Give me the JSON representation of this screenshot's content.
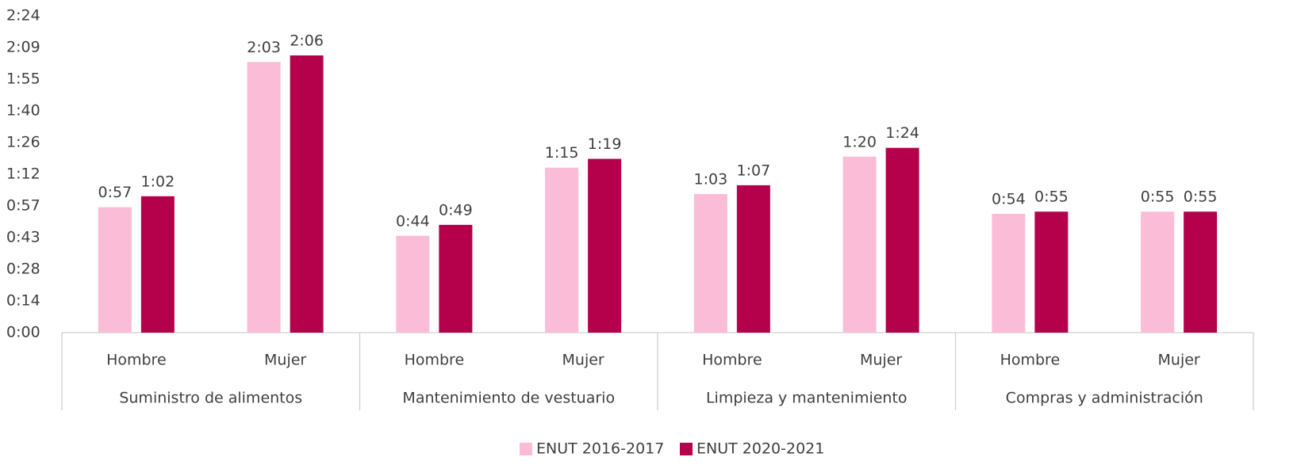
{
  "chart_data": {
    "type": "bar",
    "categories": [
      "Hombre",
      "Mujer",
      "Hombre",
      "Mujer",
      "Hombre",
      "Mujer",
      "Hombre",
      "Mujer"
    ],
    "groups": [
      "Suministro de alimentos",
      "Mantenimiento de vestuario",
      "Limpieza y mantenimiento",
      "Compras y administración"
    ],
    "series": [
      {
        "name": "ENUT 2016-2017",
        "color": "#fbbcd8",
        "values": [
          57,
          123,
          44,
          75,
          63,
          80,
          54,
          55
        ],
        "value_labels": [
          "0:57",
          "2:03",
          "0:44",
          "1:15",
          "1:03",
          "1:20",
          "0:54",
          "0:55"
        ]
      },
      {
        "name": "ENUT 2020-2021",
        "color": "#b5004b",
        "values": [
          62,
          126,
          49,
          79,
          67,
          84,
          55,
          55
        ],
        "value_labels": [
          "1:02",
          "2:06",
          "0:49",
          "1:19",
          "1:07",
          "1:24",
          "0:55",
          "0:55"
        ]
      }
    ],
    "ylim": [
      0,
      144
    ],
    "yticks": [
      {
        "value": 0,
        "label": "0:00"
      },
      {
        "value": 14.4,
        "label": "0:14"
      },
      {
        "value": 28.8,
        "label": "0:28"
      },
      {
        "value": 43.2,
        "label": "0:43"
      },
      {
        "value": 57.6,
        "label": "0:57"
      },
      {
        "value": 72,
        "label": "1:12"
      },
      {
        "value": 86.4,
        "label": "1:26"
      },
      {
        "value": 100.8,
        "label": "1:40"
      },
      {
        "value": 115.2,
        "label": "1:55"
      },
      {
        "value": 129.6,
        "label": "2:09"
      },
      {
        "value": 144,
        "label": "2:24"
      }
    ],
    "grid": false,
    "legend": "bottom"
  }
}
